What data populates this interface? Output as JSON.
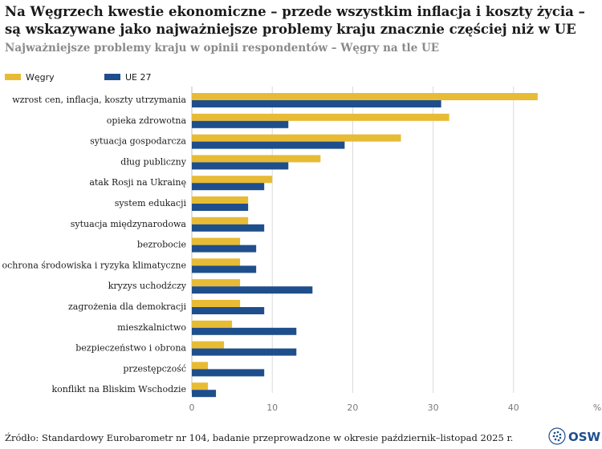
{
  "header": {
    "title": "Na Węgrzech kwestie ekonomiczne  – przede wszystkim inflacja i koszty życia – są wskazywane jako najważniejsze problemy kraju znacznie częściej niż w UE",
    "subtitle": "Najważniejsze problemy kraju w opinii respondentów – Węgry na tle UE"
  },
  "colors": {
    "hungary": "#e8bb35",
    "eu": "#1f4e8c"
  },
  "chart_data": {
    "type": "bar",
    "orientation": "horizontal",
    "categories": [
      "wzrost cen, inflacja, koszty utrzymania",
      "opieka zdrowotna",
      "sytuacja gospodarcza",
      "dług publiczny",
      "atak Rosji na Ukrainę",
      "system edukacji",
      "sytuacja międzynarodowa",
      "bezrobocie",
      "ochrona środowiska i ryzyka klimatyczne",
      "kryzys uchodźczy",
      "zagrożenia dla demokracji",
      "mieszkalnictwo",
      "bezpieczeństwo i obrona",
      "przestępczość",
      "konflikt na Bliskim Wschodzie"
    ],
    "series": [
      {
        "name": "Węgry",
        "values": [
          43,
          32,
          26,
          16,
          10,
          7,
          7,
          6,
          6,
          6,
          6,
          5,
          4,
          2,
          2
        ]
      },
      {
        "name": "UE 27",
        "values": [
          31,
          12,
          19,
          12,
          9,
          7,
          9,
          8,
          8,
          15,
          9,
          13,
          13,
          9,
          3
        ]
      }
    ],
    "xlim": [
      0,
      50
    ],
    "xticks": [
      0,
      10,
      20,
      30,
      40
    ],
    "unit_label": "%",
    "legend_position": "top-left",
    "grid": true
  },
  "footer": {
    "source": "Źródło: Standardowy Eurobarometr nr 104, badanie przeprowadzone w okresie październik–listopad 2025 r.",
    "logo_text": "OSW"
  }
}
